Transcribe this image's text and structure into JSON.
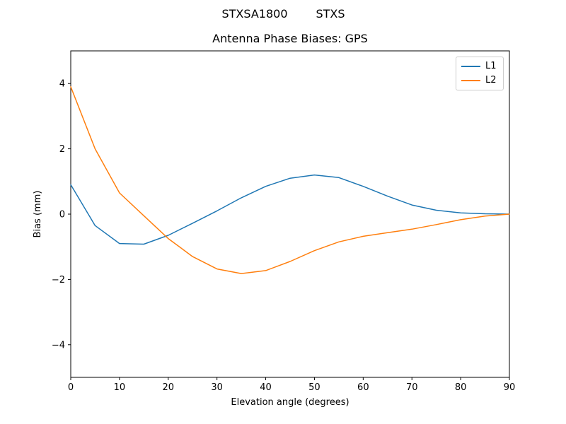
{
  "header": {
    "suptitle_parts": [
      "STXSA1800",
      "STXS"
    ]
  },
  "chart_data": {
    "type": "line",
    "suptitle": "STXSA1800        STXS",
    "title": "Antenna Phase Biases: GPS",
    "xlabel": "Elevation angle (degrees)",
    "ylabel": "Bias (mm)",
    "xlim": [
      0,
      90
    ],
    "ylim": [
      -5,
      5
    ],
    "xticks": [
      0,
      10,
      20,
      30,
      40,
      50,
      60,
      70,
      80,
      90
    ],
    "xticklabels": [
      "0",
      "10",
      "20",
      "30",
      "40",
      "50",
      "60",
      "70",
      "80",
      "90"
    ],
    "yticks": [
      -4,
      -2,
      0,
      2,
      4
    ],
    "yticklabels": [
      "−4",
      "−2",
      "0",
      "2",
      "4"
    ],
    "grid": false,
    "legend_position": "upper right",
    "x": [
      0,
      5,
      10,
      15,
      20,
      25,
      30,
      35,
      40,
      45,
      50,
      55,
      60,
      65,
      70,
      75,
      80,
      85,
      90
    ],
    "series": [
      {
        "name": "L1",
        "color": "#1f77b4",
        "values": [
          0.9,
          -0.35,
          -0.9,
          -0.92,
          -0.65,
          -0.28,
          0.1,
          0.5,
          0.85,
          1.1,
          1.2,
          1.12,
          0.85,
          0.55,
          0.28,
          0.12,
          0.04,
          0.01,
          0.0
        ]
      },
      {
        "name": "L2",
        "color": "#ff7f0e",
        "values": [
          3.9,
          2.0,
          0.65,
          -0.05,
          -0.75,
          -1.3,
          -1.68,
          -1.82,
          -1.73,
          -1.45,
          -1.12,
          -0.85,
          -0.68,
          -0.57,
          -0.46,
          -0.32,
          -0.17,
          -0.06,
          0.0
        ]
      }
    ]
  }
}
